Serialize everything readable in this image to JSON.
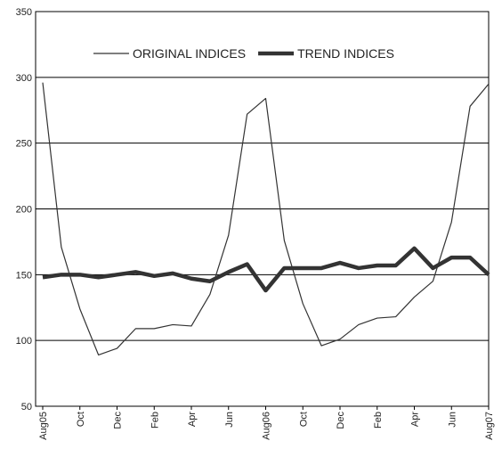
{
  "chart_data": {
    "type": "line",
    "categories": [
      "Aug05",
      null,
      "Oct",
      null,
      "Dec",
      null,
      "Feb",
      null,
      "Apr",
      null,
      "Jun",
      null,
      "Aug06",
      null,
      "Oct",
      null,
      "Dec",
      null,
      "Feb",
      null,
      "Apr",
      null,
      "Jun",
      null,
      "Aug07"
    ],
    "series": [
      {
        "name": "ORIGINAL INDICES",
        "color": "#333333",
        "values": [
          296,
          171,
          124,
          89,
          94,
          109,
          109,
          112,
          111,
          135,
          180,
          272,
          284,
          176,
          128,
          96,
          101,
          112,
          117,
          118,
          133,
          145,
          190,
          278,
          295
        ]
      },
      {
        "name": "TREND INDICES",
        "color": "#333333",
        "values": [
          148,
          150,
          150,
          148,
          150,
          152,
          149,
          151,
          147,
          145,
          152,
          158,
          138,
          155,
          155,
          155,
          159,
          155,
          157,
          157,
          170,
          155,
          163,
          163,
          150
        ]
      }
    ],
    "ylim": [
      50,
      350
    ],
    "yticks": [
      50,
      100,
      150,
      200,
      250,
      300,
      350
    ],
    "grid": true,
    "legend": "top"
  }
}
